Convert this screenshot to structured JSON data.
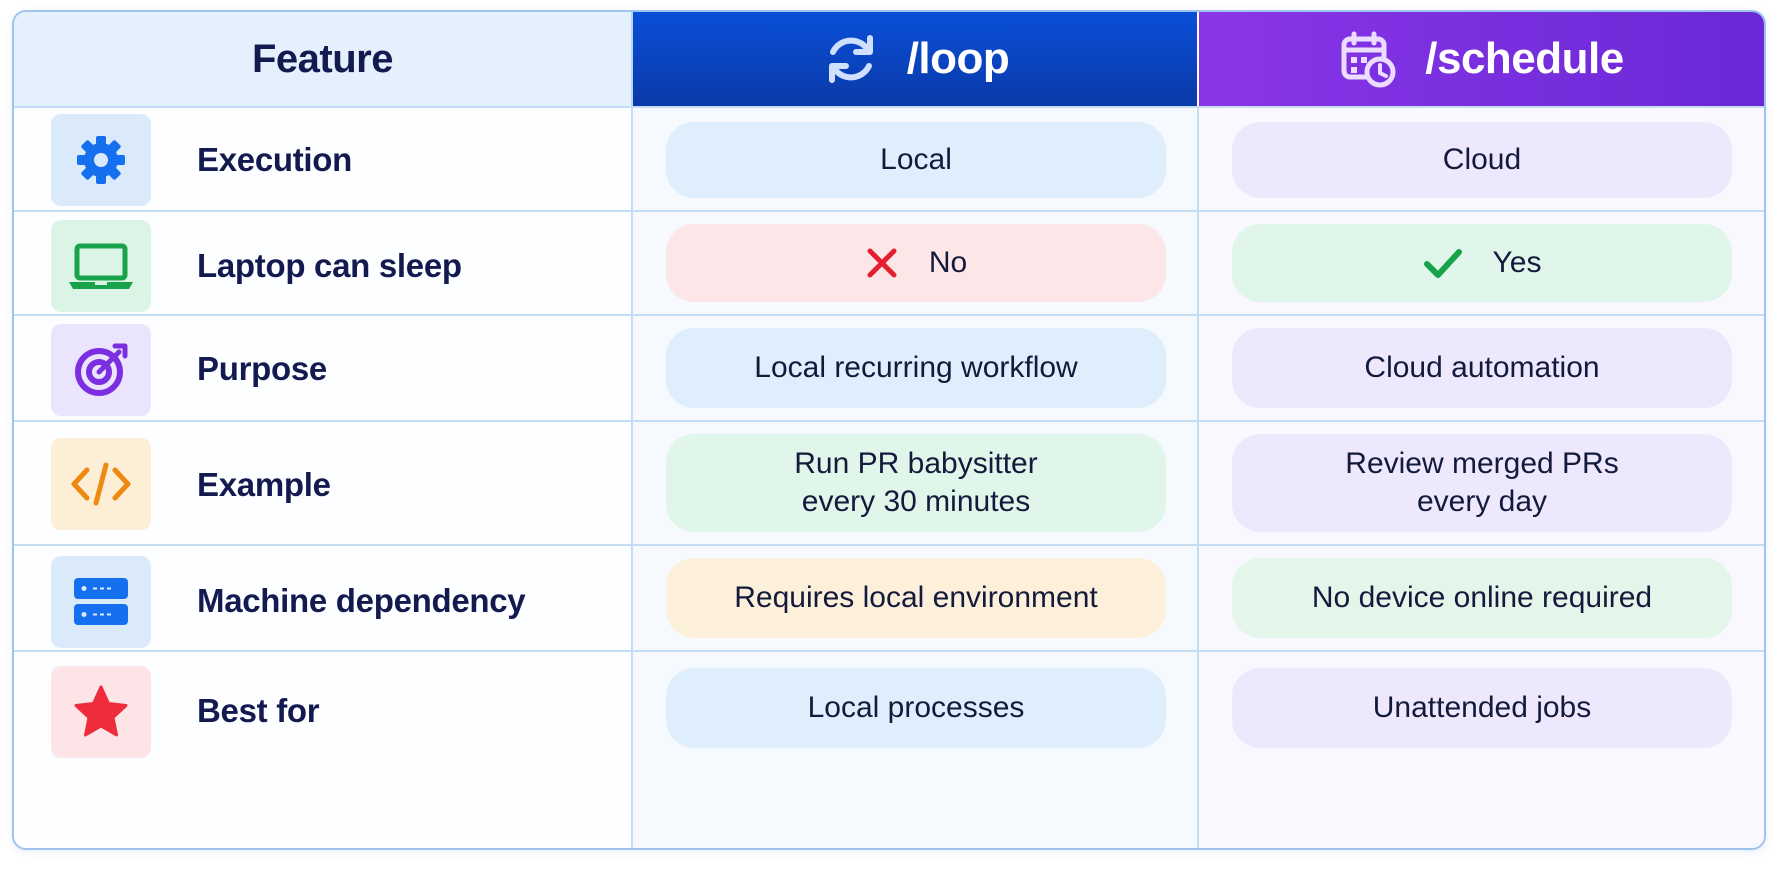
{
  "header": {
    "feature_label": "Feature",
    "loop_label": "/loop",
    "schedule_label": "/schedule",
    "loop_icon": "refresh-icon",
    "schedule_icon": "calendar-clock-icon"
  },
  "rows": [
    {
      "feature": "Execution",
      "icon": "gear-icon",
      "loop": "Local",
      "schedule": "Cloud"
    },
    {
      "feature": "Laptop can sleep",
      "icon": "laptop-icon",
      "loop": "No",
      "loop_mark": "cross-icon",
      "schedule": "Yes",
      "schedule_mark": "check-icon"
    },
    {
      "feature": "Purpose",
      "icon": "target-icon",
      "loop": "Local recurring workflow",
      "schedule": "Cloud automation"
    },
    {
      "feature": "Example",
      "icon": "code-icon",
      "loop_line1": "Run PR babysitter",
      "loop_line2": "every 30 minutes",
      "schedule_line1": "Review merged PRs",
      "schedule_line2": "every day"
    },
    {
      "feature": "Machine dependency",
      "icon": "server-icon",
      "loop": "Requires local environment",
      "schedule": "No device online required"
    },
    {
      "feature": "Best for",
      "icon": "star-icon",
      "loop": "Local processes",
      "schedule": "Unattended jobs"
    }
  ],
  "colors": {
    "loop_header": "#0a46c8",
    "schedule_header": "#7a30e0",
    "title_text": "#131a50"
  }
}
